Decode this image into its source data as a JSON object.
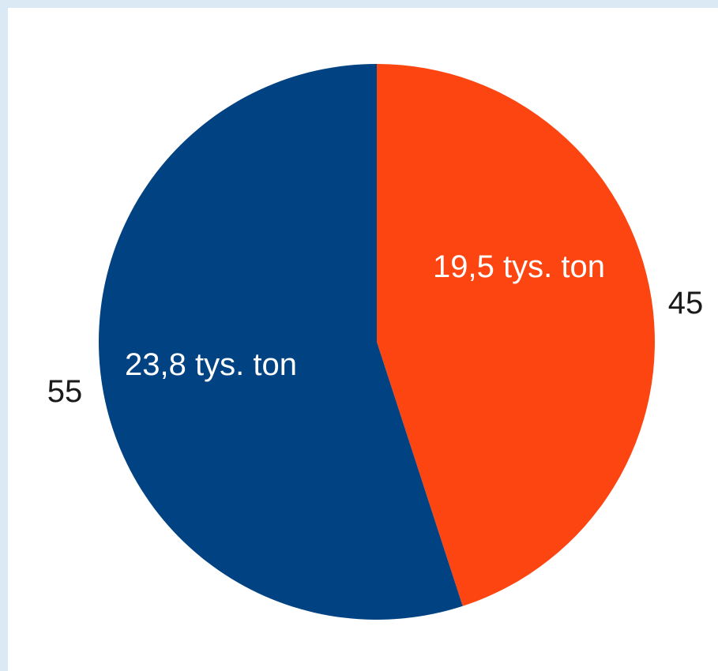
{
  "chart_data": {
    "type": "pie",
    "slices": [
      {
        "value": 45,
        "value_label": "45",
        "inner_label": "19,5 tys. ton",
        "color": "#fc4511"
      },
      {
        "value": 55,
        "value_label": "55",
        "inner_label": "23,8 tys. ton",
        "color": "#004282"
      }
    ],
    "start_angle_deg": 0,
    "direction": "clockwise"
  },
  "colors": {
    "page_background": "#dbe9f4",
    "panel_background": "#ffffff"
  }
}
